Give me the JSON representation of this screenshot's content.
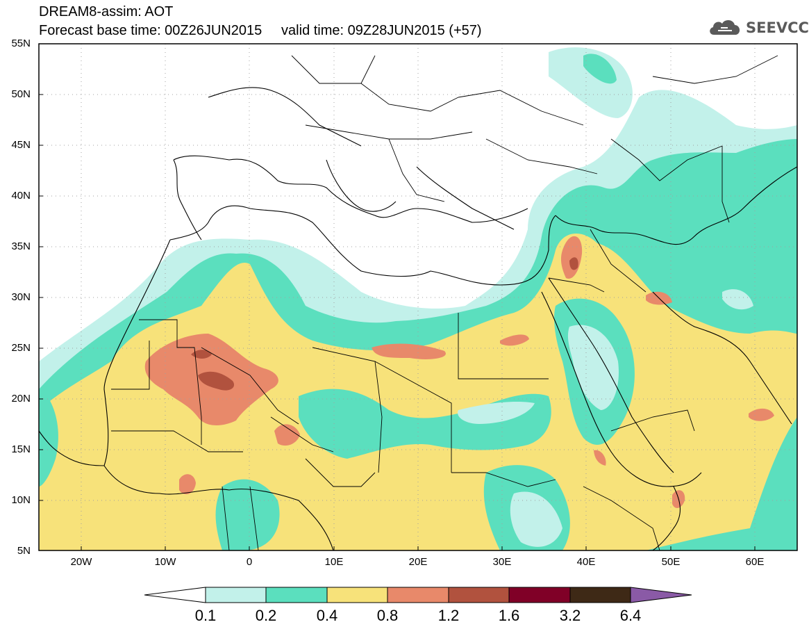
{
  "header": {
    "line1": "DREAM8-assim: AOT",
    "line2": "Forecast base time: 00Z26JUN2015     valid time: 09Z28JUN2015 (+57)"
  },
  "logo": {
    "text": "SEEVCCC",
    "icon": "cloud-icon",
    "color": "#5a5a5a"
  },
  "map": {
    "lon_range": [
      -25,
      65
    ],
    "lat_range": [
      5,
      55
    ],
    "lat_labels": [
      "55N",
      "50N",
      "45N",
      "40N",
      "35N",
      "30N",
      "25N",
      "20N",
      "15N",
      "10N",
      "5N"
    ],
    "lon_labels": [
      "20W",
      "10W",
      "0",
      "10E",
      "20E",
      "30E",
      "40E",
      "50E",
      "60E"
    ],
    "gridlines": "dotted"
  },
  "colorbar": {
    "labels": [
      "0.1",
      "0.2",
      "0.4",
      "0.8",
      "1.2",
      "1.6",
      "3.2",
      "6.4"
    ],
    "colors": [
      "#ffffff",
      "#c2f1ea",
      "#5bdfbe",
      "#f7e27a",
      "#e8896a",
      "#b1523e",
      "#800027",
      "#3e2916",
      "#8a5aa6"
    ]
  }
}
